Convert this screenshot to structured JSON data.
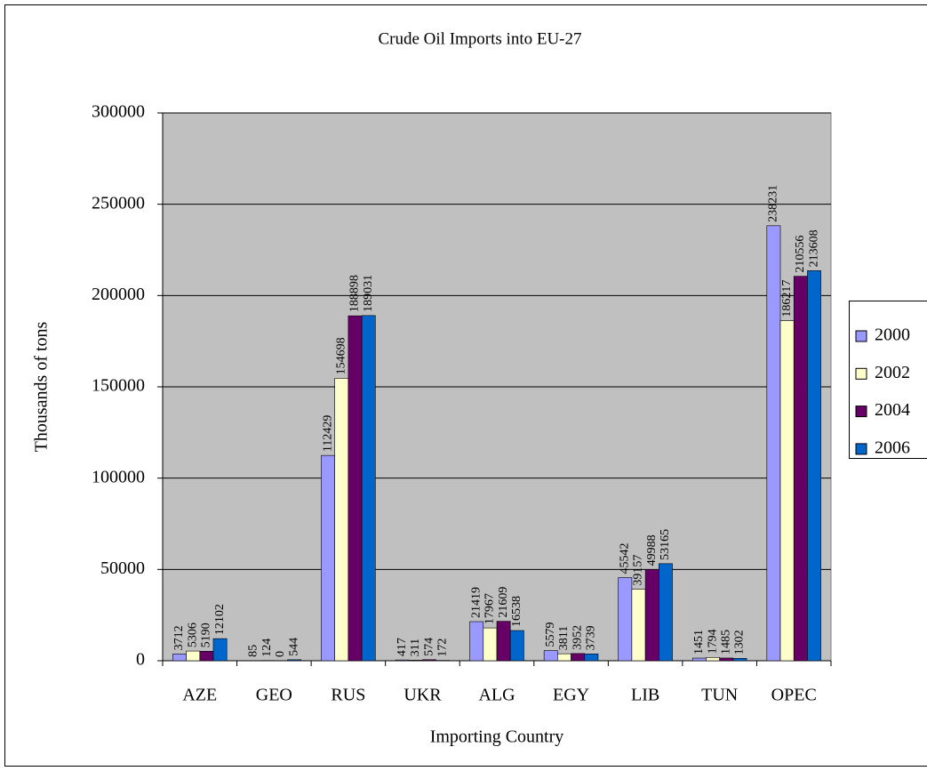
{
  "chart_data": {
    "type": "bar",
    "title": "Crude Oil Imports into EU-27",
    "x_label": "Importing Country",
    "y_label": "Thousands of tons",
    "categories": [
      "AZE",
      "GEO",
      "RUS",
      "UKR",
      "ALG",
      "EGY",
      "LIB",
      "TUN",
      "OPEC"
    ],
    "series": [
      {
        "name": "2000",
        "color": "#9999ff",
        "values": [
          3712,
          85,
          112429,
          417,
          21419,
          5579,
          45542,
          1451,
          238231
        ]
      },
      {
        "name": "2002",
        "color": "#ffffcc",
        "values": [
          5306,
          124,
          154698,
          311,
          17967,
          3811,
          39157,
          1794,
          186217
        ]
      },
      {
        "name": "2004",
        "color": "#660066",
        "values": [
          5190,
          0,
          188898,
          574,
          21609,
          3952,
          49988,
          1485,
          210556
        ]
      },
      {
        "name": "2006",
        "color": "#0066cc",
        "values": [
          12102,
          544,
          189031,
          172,
          16538,
          3739,
          53165,
          1302,
          213608
        ]
      }
    ],
    "ylim": [
      0,
      300000
    ],
    "yticks": [
      0,
      50000,
      100000,
      150000,
      200000,
      250000,
      300000
    ],
    "grid": true,
    "legend": "right"
  }
}
